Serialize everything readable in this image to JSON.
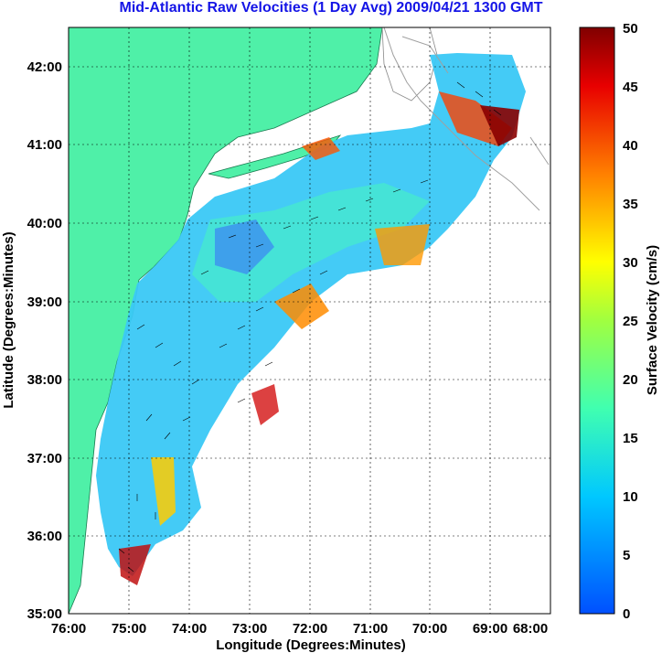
{
  "title": "Mid-Atlantic Raw Velocities (1 Day Avg) 2009/04/21 1300 GMT",
  "map": {
    "x_label": "Longitude (Degrees:Minutes)",
    "y_label": "Latitude (Degrees:Minutes)",
    "x_ticks": [
      "76:00",
      "75:00",
      "74:00",
      "73:00",
      "72:00",
      "71:00",
      "70:00",
      "69:00",
      "68:00"
    ],
    "y_ticks": [
      "42:00",
      "41:00",
      "40:00",
      "39:00",
      "38:00",
      "37:00",
      "36:00",
      "35:00"
    ],
    "lon_range": [
      -76,
      -68
    ],
    "lat_range": [
      35,
      42.5
    ],
    "land_color": "#4ff0a8",
    "grid": true
  },
  "colorbar": {
    "label": "Surface Velocity (cm/s)",
    "ticks": [
      "50",
      "45",
      "40",
      "35",
      "30",
      "25",
      "20",
      "15",
      "10",
      "5",
      "0"
    ],
    "range": [
      0,
      50
    ]
  }
}
